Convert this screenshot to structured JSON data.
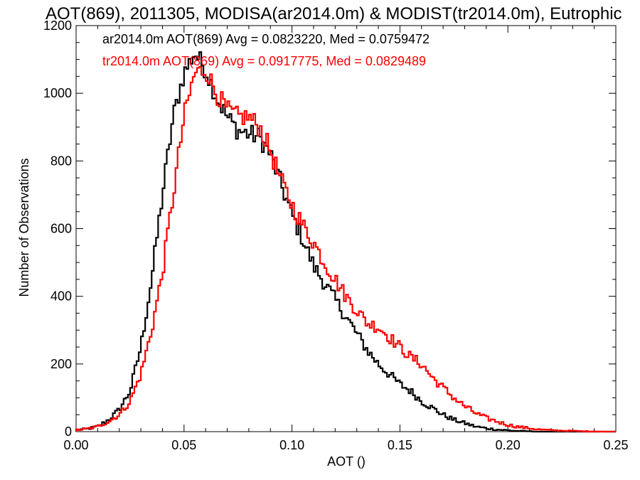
{
  "chart_data": {
    "type": "line",
    "title": "AOT(869), 2011305, MODISA(ar2014.0m) & MODIST(tr2014.0m), Eutrophic",
    "xlabel": "AOT ()",
    "ylabel": "Number of Observations",
    "xlim": [
      0.0,
      0.25
    ],
    "ylim": [
      0,
      1200
    ],
    "xticks": [
      0.0,
      0.05,
      0.1,
      0.15,
      0.2,
      0.25
    ],
    "xtick_labels": [
      "0.00",
      "0.05",
      "0.10",
      "0.15",
      "0.20",
      "0.25"
    ],
    "yticks": [
      0,
      200,
      400,
      600,
      800,
      1000,
      1200
    ],
    "ytick_labels": [
      "0",
      "200",
      "400",
      "600",
      "800",
      "1000",
      "1200"
    ],
    "grid": false,
    "legend": "top-left",
    "series": [
      {
        "name": "ar2014.0m",
        "color": "#000000",
        "stats_label": "ar2014.0m AOT(869) Avg = 0.0823220, Med = 0.0759472",
        "x": [
          0.0,
          0.005,
          0.01,
          0.015,
          0.02,
          0.025,
          0.03,
          0.035,
          0.04,
          0.045,
          0.05,
          0.055,
          0.06,
          0.065,
          0.07,
          0.075,
          0.08,
          0.085,
          0.09,
          0.095,
          0.1,
          0.105,
          0.11,
          0.115,
          0.12,
          0.125,
          0.13,
          0.135,
          0.14,
          0.145,
          0.15,
          0.155,
          0.16,
          0.165,
          0.17,
          0.175,
          0.18,
          0.185,
          0.19,
          0.195,
          0.2,
          0.205,
          0.21,
          0.215,
          0.22,
          0.225,
          0.23,
          0.235,
          0.24,
          0.245,
          0.25
        ],
        "y": [
          5,
          8,
          15,
          35,
          65,
          120,
          250,
          450,
          700,
          930,
          1060,
          1120,
          1070,
          990,
          930,
          890,
          880,
          870,
          820,
          730,
          640,
          570,
          490,
          440,
          390,
          340,
          290,
          240,
          200,
          170,
          140,
          120,
          90,
          70,
          50,
          35,
          25,
          15,
          10,
          6,
          4,
          2,
          1,
          0,
          0,
          0,
          0,
          0,
          0,
          0,
          0
        ]
      },
      {
        "name": "tr2014.0m",
        "color": "#ff0000",
        "stats_label": "tr2014.0m AOT(869) Avg = 0.0917775, Med = 0.0829489",
        "x": [
          0.0,
          0.005,
          0.01,
          0.015,
          0.02,
          0.025,
          0.03,
          0.035,
          0.04,
          0.045,
          0.05,
          0.055,
          0.06,
          0.065,
          0.07,
          0.075,
          0.08,
          0.085,
          0.09,
          0.095,
          0.1,
          0.105,
          0.11,
          0.115,
          0.12,
          0.125,
          0.13,
          0.135,
          0.14,
          0.145,
          0.15,
          0.155,
          0.16,
          0.165,
          0.17,
          0.175,
          0.18,
          0.185,
          0.19,
          0.195,
          0.2,
          0.205,
          0.21,
          0.215,
          0.22,
          0.225,
          0.23,
          0.235,
          0.24,
          0.245,
          0.25
        ],
        "y": [
          5,
          8,
          15,
          30,
          50,
          90,
          170,
          300,
          470,
          700,
          930,
          1060,
          1070,
          1000,
          950,
          930,
          930,
          900,
          830,
          740,
          670,
          610,
          560,
          500,
          450,
          400,
          360,
          320,
          310,
          280,
          250,
          220,
          200,
          160,
          130,
          100,
          75,
          55,
          40,
          30,
          20,
          14,
          10,
          6,
          4,
          3,
          2,
          1,
          1,
          0,
          0
        ]
      }
    ]
  }
}
